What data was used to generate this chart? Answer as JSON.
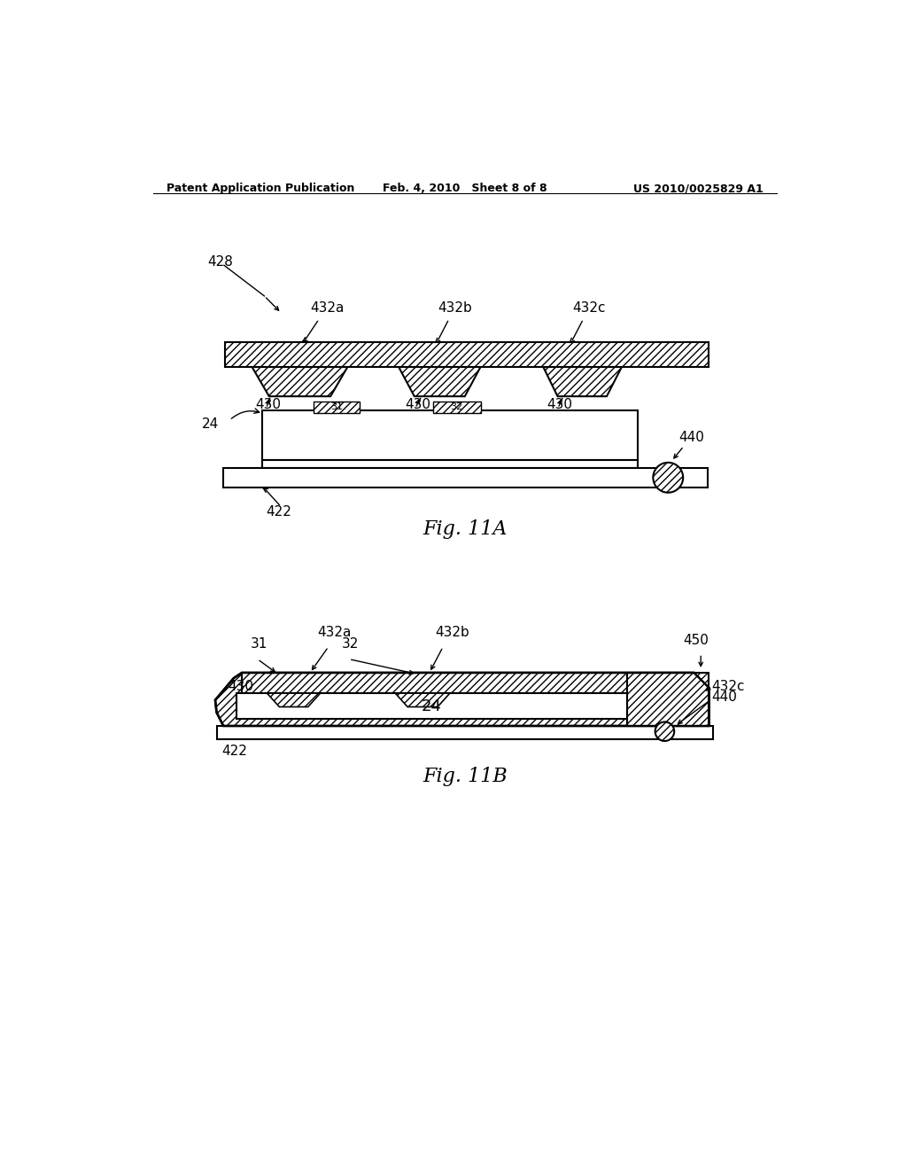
{
  "bg_color": "#ffffff",
  "line_color": "#000000",
  "header_left": "Patent Application Publication",
  "header_center": "Feb. 4, 2010   Sheet 8 of 8",
  "header_right": "US 2010/0025829 A1",
  "fig11a_label": "Fig. 11A",
  "fig11b_label": "Fig. 11B",
  "label_428": "428",
  "label_432a_top": "432a",
  "label_432b_top": "432b",
  "label_432c_top": "432c",
  "label_430a": "430",
  "label_430b": "430",
  "label_430c": "430",
  "label_24a": "24",
  "label_440a": "440",
  "label_422a": "422",
  "label_31b": "31",
  "label_32b": "32",
  "label_432a_bot": "432a",
  "label_432b_bot": "432b",
  "label_432c_bot": "432c",
  "label_430bot": "430",
  "label_24b": "24",
  "label_440b": "440",
  "label_422b": "422",
  "label_450": "450"
}
